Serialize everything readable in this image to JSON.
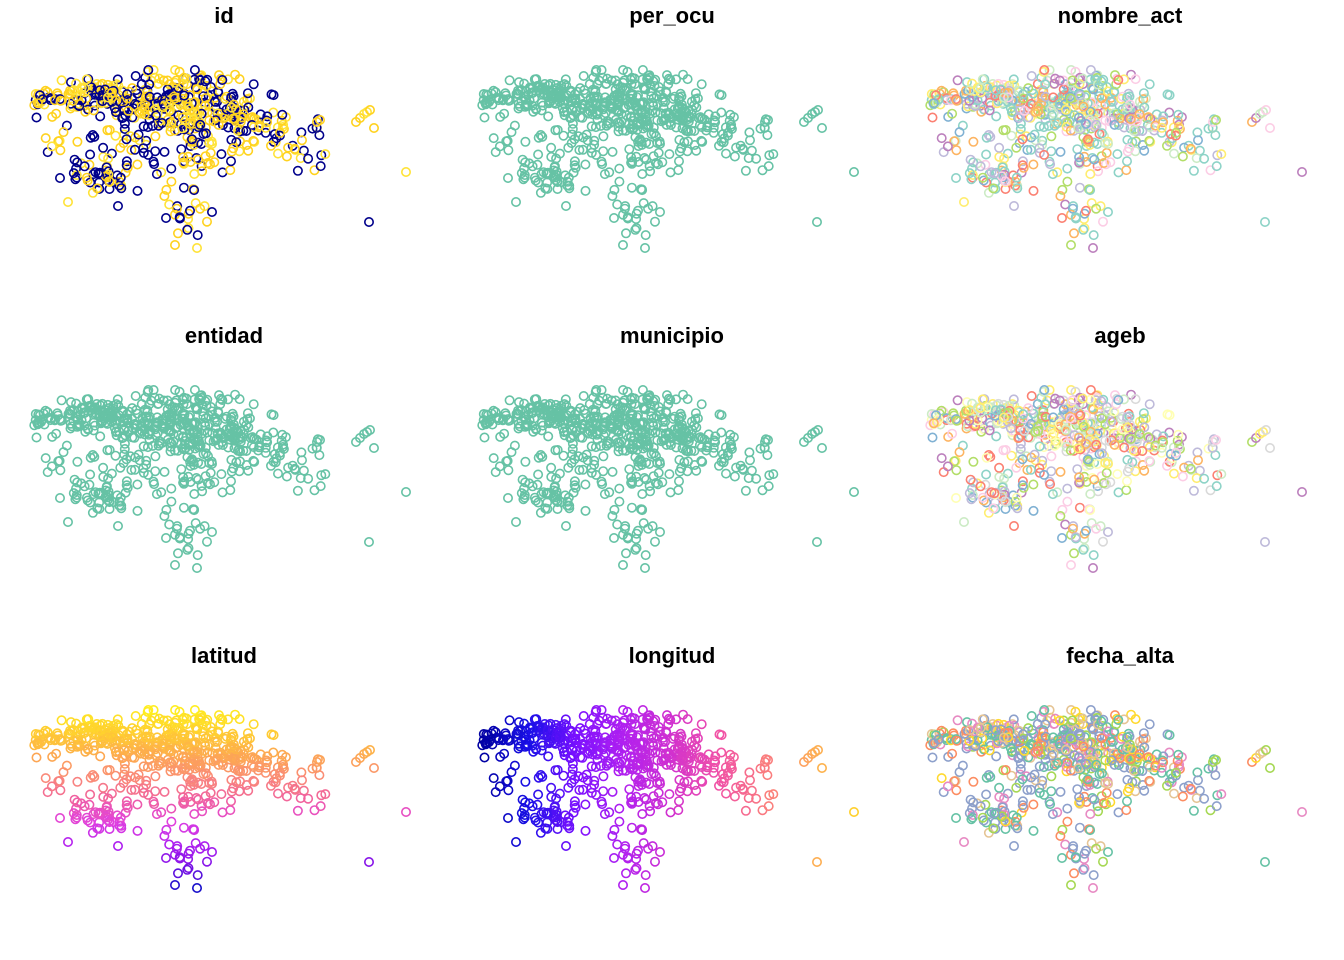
{
  "chart_data": [
    {
      "type": "scatter",
      "title": "id",
      "color_mode": "two-class",
      "palette": [
        "#ffd21f",
        "#00008b",
        "#ffe338"
      ]
    },
    {
      "type": "scatter",
      "title": "per_ocu",
      "color_mode": "single",
      "palette": [
        "#66c2a5"
      ]
    },
    {
      "type": "scatter",
      "title": "nombre_act",
      "color_mode": "categorical",
      "palette": [
        "#8dd3c7",
        "#8dd3c7",
        "#8dd3c7",
        "#bebada",
        "#fb8072",
        "#80b1d3",
        "#fdb462",
        "#b3de69",
        "#fccde5",
        "#bc80bd",
        "#ffed6f",
        "#ccebc5"
      ]
    },
    {
      "type": "scatter",
      "title": "entidad",
      "color_mode": "single",
      "palette": [
        "#66c2a5"
      ]
    },
    {
      "type": "scatter",
      "title": "municipio",
      "color_mode": "single",
      "palette": [
        "#66c2a5"
      ]
    },
    {
      "type": "scatter",
      "title": "ageb",
      "color_mode": "categorical",
      "palette": [
        "#8dd3c7",
        "#ffffb3",
        "#bebada",
        "#fb8072",
        "#80b1d3",
        "#fdb462",
        "#b3de69",
        "#fccde5",
        "#d9d9d9",
        "#bc80bd",
        "#ccebc5",
        "#ffed6f"
      ]
    },
    {
      "type": "scatter",
      "title": "latitud",
      "color_mode": "gradient-y",
      "palette": [
        "#0d0887",
        "#7e03a8",
        "#cc4778",
        "#f89540",
        "#f0f921"
      ],
      "ramp": [
        "#1010c8",
        "#7a10e6",
        "#b020f0",
        "#e040e0",
        "#f060a0",
        "#fa8a78",
        "#fdaa50",
        "#ffce30",
        "#ffee20"
      ]
    },
    {
      "type": "scatter",
      "title": "longitud",
      "color_mode": "gradient-x",
      "palette": [
        "#0000a0",
        "#1a10e8",
        "#7a10ff",
        "#b020f0",
        "#d030d0",
        "#f050a8",
        "#fa7a80",
        "#fda858",
        "#ffd428"
      ]
    },
    {
      "type": "scatter",
      "title": "fecha_alta",
      "color_mode": "categorical",
      "palette": [
        "#8da0cb",
        "#66c2a5",
        "#8da0cb",
        "#66c2a5",
        "#8da0cb",
        "#fc8d62",
        "#a6d854",
        "#ffd92f",
        "#e78ac3",
        "#e5c494"
      ]
    }
  ]
}
